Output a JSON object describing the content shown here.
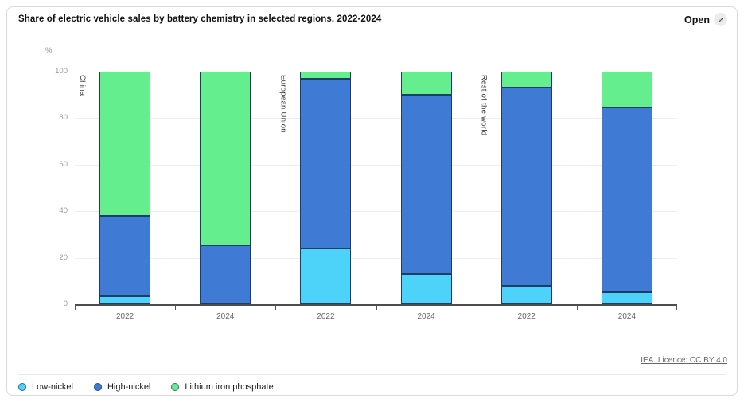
{
  "header": {
    "title": "Share of electric vehicle sales by battery chemistry in selected regions, 2022-2024",
    "open_label": "Open"
  },
  "footer": {
    "source_link": "IEA. Licence: CC BY 4.0"
  },
  "colors": {
    "low_nickel": "#4dd2fa",
    "high_nickel": "#3f7ad5",
    "lfp": "#65ee8e",
    "bar_border": "#1e3c64",
    "axis": "#4d4d4d",
    "gridline": "#ededed"
  },
  "chart_data": {
    "type": "bar",
    "stacked": true,
    "title": "Share of electric vehicle sales by battery chemistry in selected regions, 2022-2024",
    "unit": "%",
    "ylim": [
      0,
      100
    ],
    "yticks": [
      0,
      20,
      40,
      60,
      80,
      100
    ],
    "grid": true,
    "legend_position": "bottom",
    "groups": [
      "China",
      "European Union",
      "Rest of the world"
    ],
    "categories": [
      "2022",
      "2024",
      "2022",
      "2024",
      "2022",
      "2024"
    ],
    "series": [
      {
        "name": "Low-nickel",
        "color": "#4dd2fa",
        "values": [
          3.5,
          0,
          24,
          13,
          8,
          5
        ]
      },
      {
        "name": "High-nickel",
        "color": "#3f7ad5",
        "values": [
          34.5,
          25.5,
          73,
          77,
          85,
          79.5
        ]
      },
      {
        "name": "Lithium iron phosphate",
        "color": "#65ee8e",
        "values": [
          62,
          74.5,
          3,
          10,
          7,
          15.5
        ]
      }
    ],
    "stack_tops_note": "cumulative tops: China22 3.5/38/100, China24 25.5/100, EU22 24/97/100, EU24 13/90/100, RoW22 8/93/100, RoW24 5/84.5/100"
  }
}
